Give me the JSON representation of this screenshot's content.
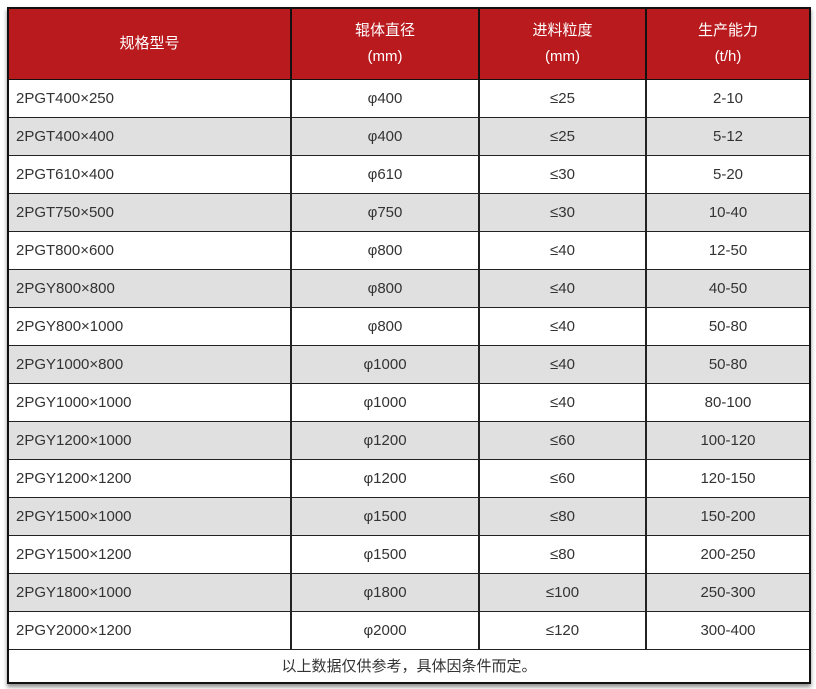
{
  "colors": {
    "header_bg": "#b91a1d",
    "header_text": "#ffffff",
    "row_bg": "#ffffff",
    "row_alt_bg": "#e0e0e0",
    "border": "#222222",
    "body_text": "#333333"
  },
  "table": {
    "headers": {
      "model": {
        "line1": "规格型号",
        "line2": ""
      },
      "diameter": {
        "line1": "辊体直径",
        "line2": "(mm)"
      },
      "feed": {
        "line1": "进料粒度",
        "line2": "(mm)"
      },
      "capacity": {
        "line1": "生产能力",
        "line2": "(t/h)"
      }
    },
    "rows": [
      [
        "2PGT400×250",
        "φ400",
        "≤25",
        "2-10"
      ],
      [
        "2PGT400×400",
        "φ400",
        "≤25",
        "5-12"
      ],
      [
        "2PGT610×400",
        "φ610",
        "≤30",
        "5-20"
      ],
      [
        "2PGT750×500",
        "φ750",
        "≤30",
        "10-40"
      ],
      [
        "2PGT800×600",
        "φ800",
        "≤40",
        "12-50"
      ],
      [
        "2PGY800×800",
        "φ800",
        "≤40",
        "40-50"
      ],
      [
        "2PGY800×1000",
        "φ800",
        "≤40",
        "50-80"
      ],
      [
        "2PGY1000×800",
        "φ1000",
        "≤40",
        "50-80"
      ],
      [
        "2PGY1000×1000",
        "φ1000",
        "≤40",
        "80-100"
      ],
      [
        "2PGY1200×1000",
        "φ1200",
        "≤60",
        "100-120"
      ],
      [
        "2PGY1200×1200",
        "φ1200",
        "≤60",
        "120-150"
      ],
      [
        "2PGY1500×1000",
        "φ1500",
        "≤80",
        "150-200"
      ],
      [
        "2PGY1500×1200",
        "φ1500",
        "≤80",
        "200-250"
      ],
      [
        "2PGY1800×1000",
        "φ1800",
        "≤100",
        "250-300"
      ],
      [
        "2PGY2000×1200",
        "φ2000",
        "≤120",
        "300-400"
      ]
    ],
    "footnote": "以上数据仅供参考，具体因条件而定。"
  }
}
